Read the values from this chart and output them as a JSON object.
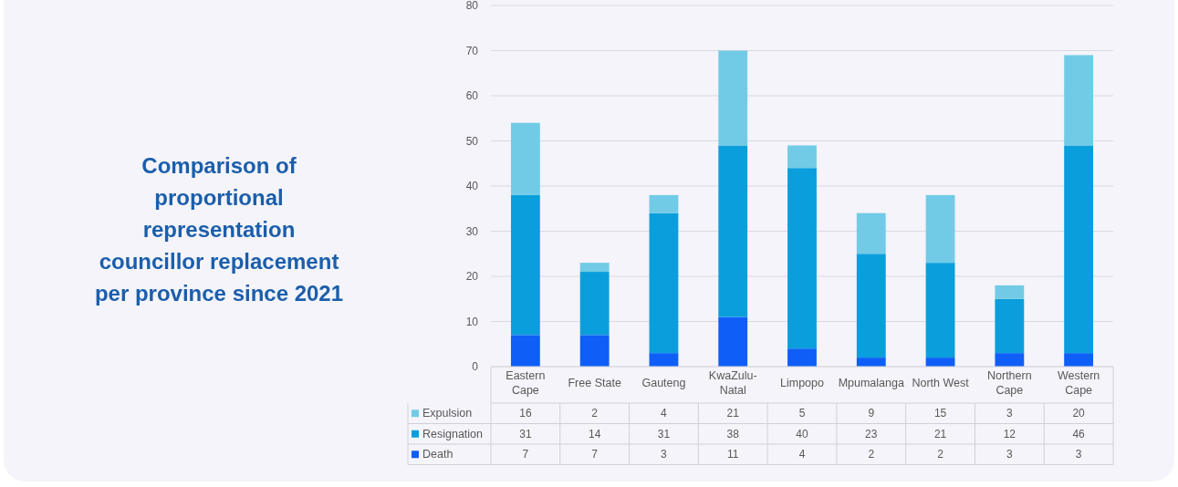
{
  "chart_data": {
    "type": "bar",
    "title": "Comparison of proportional representation councillor replacement per province since 2021",
    "categories": [
      "Eastern Cape",
      "Free State",
      "Gauteng",
      "KwaZulu-Natal",
      "Limpopo",
      "Mpumalanga",
      "North West",
      "Northern Cape",
      "Western Cape"
    ],
    "stacked": true,
    "series": [
      {
        "name": "Death",
        "color": "#0f5ef7",
        "values": [
          7,
          7,
          3,
          11,
          4,
          2,
          2,
          3,
          3
        ]
      },
      {
        "name": "Resignation",
        "color": "#0a9fdc",
        "values": [
          31,
          14,
          31,
          38,
          40,
          23,
          21,
          12,
          46
        ]
      },
      {
        "name": "Expulsion",
        "color": "#72cbe6",
        "values": [
          16,
          2,
          4,
          21,
          5,
          9,
          15,
          3,
          20
        ]
      }
    ],
    "ylim": [
      0,
      80
    ],
    "yticks": [
      0,
      10,
      20,
      30,
      40,
      50,
      60,
      70,
      80
    ],
    "grid": "y",
    "legend": "bottom",
    "data_labels": true
  }
}
